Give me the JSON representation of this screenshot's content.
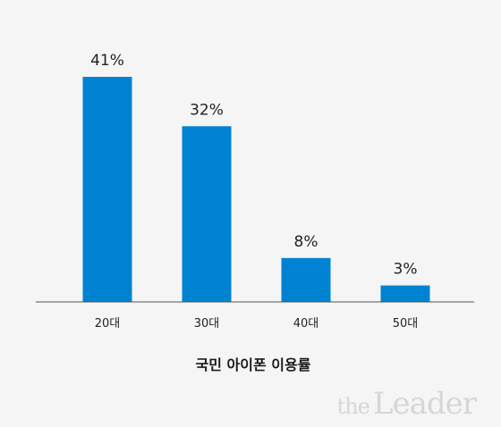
{
  "chart_data": {
    "type": "bar",
    "categories": [
      "20대",
      "30대",
      "40대",
      "50대"
    ],
    "values": [
      41,
      32,
      8,
      3
    ],
    "value_labels": [
      "41%",
      "32%",
      "8%",
      "3%"
    ],
    "title": "국민 아이폰 이용률",
    "xlabel": "",
    "ylabel": "",
    "ylim": [
      0,
      41
    ],
    "grid": false,
    "legend": "none",
    "bar_color": "#0082d2",
    "axis_color": "#555555"
  },
  "watermark": {
    "prefix": "the",
    "brand": "Leader"
  }
}
